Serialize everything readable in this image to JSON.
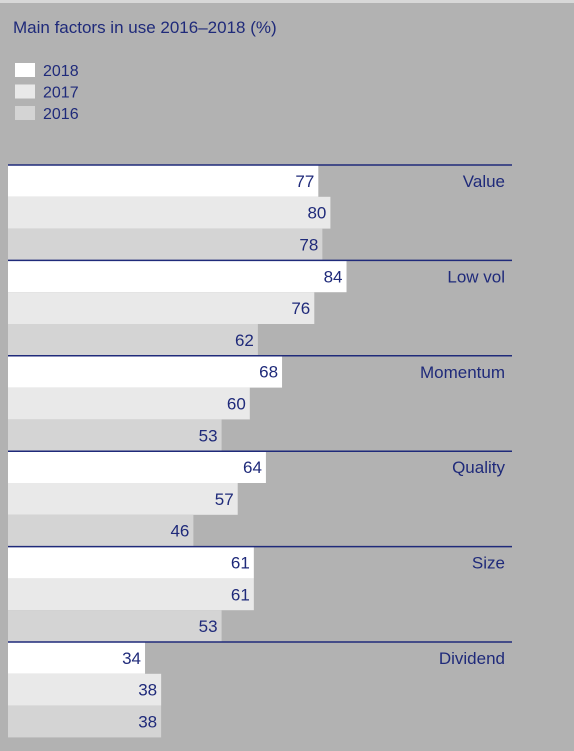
{
  "colors": {
    "background": "#b2b2b2",
    "text": "#1f2a7a",
    "divider": "#1f2a7a",
    "series": [
      "#ffffff",
      "#e9e9e9",
      "#d4d4d4"
    ]
  },
  "chart_data": {
    "type": "bar",
    "orientation": "horizontal",
    "title": "Main factors in use 2016–2018 (%)",
    "categories": [
      "Value",
      "Low vol",
      "Momentum",
      "Quality",
      "Size",
      "Dividend"
    ],
    "series": [
      {
        "name": "2018",
        "values": [
          77,
          84,
          68,
          64,
          61,
          34
        ]
      },
      {
        "name": "2017",
        "values": [
          80,
          76,
          60,
          57,
          61,
          38
        ]
      },
      {
        "name": "2016",
        "values": [
          78,
          62,
          53,
          46,
          53,
          38
        ]
      }
    ],
    "legend_position": "top-left",
    "data_labels": true,
    "grid": false
  }
}
